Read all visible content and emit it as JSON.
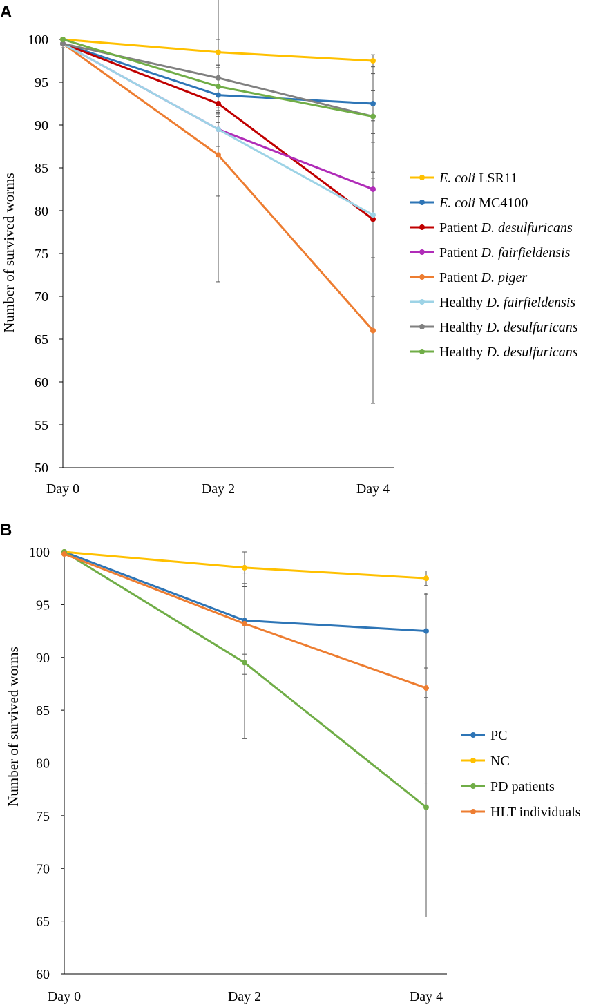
{
  "chart_data": [
    {
      "panel": "A",
      "type": "line",
      "ylabel": "Number of survived worms",
      "xlabel": "",
      "ylim": [
        50,
        100
      ],
      "yticks": [
        50,
        55,
        60,
        65,
        70,
        75,
        80,
        85,
        90,
        95,
        100
      ],
      "categories": [
        "Day 0",
        "Day 2",
        "Day 4"
      ],
      "legend_position": "right",
      "series": [
        {
          "name_plain": "E. coli",
          "name_italic_first": true,
          "name_rest": " LSR11",
          "color": "#FFC000",
          "values": [
            100,
            98.5,
            97.5
          ],
          "errors": [
            0,
            1.5,
            0.7
          ]
        },
        {
          "name_plain": "E. coli",
          "name_italic_first": true,
          "name_rest": " MC4100",
          "color": "#2E75B6",
          "values": [
            99.5,
            93.5,
            92.5
          ],
          "errors": [
            0.5,
            3.2,
            3.5
          ]
        },
        {
          "name_plain": "Patient ",
          "name_italic_first": false,
          "name_rest": "D. desulfuricans",
          "color": "#C00000",
          "values": [
            99.5,
            92.5,
            79
          ],
          "errors": [
            0.5,
            0.8,
            9
          ]
        },
        {
          "name_plain": "Patient ",
          "name_italic_first": false,
          "name_rest": "D. fairfieldensis",
          "color": "#B02CB8",
          "values": [
            99.5,
            89.5,
            82.5
          ],
          "errors": [
            0.5,
            2,
            8
          ]
        },
        {
          "name_plain": "Patient ",
          "name_italic_first": false,
          "name_rest": "D. piger",
          "color": "#ED7D31",
          "values": [
            99.5,
            86.5,
            66
          ],
          "errors": [
            0.5,
            4.8,
            8.5
          ]
        },
        {
          "name_plain": "Healthy ",
          "name_italic_first": false,
          "name_rest": "D. fairfieldensis",
          "color": "#9DD3E6",
          "values": [
            99.5,
            89.5,
            79.5
          ],
          "errors": [
            0.5,
            17.8,
            5
          ]
        },
        {
          "name_plain": "Healthy ",
          "name_italic_first": false,
          "name_rest": "D. desulfuricans",
          "color": "#808080",
          "values": [
            99.5,
            95.5,
            91
          ],
          "errors": [
            0.5,
            4.5,
            7.2
          ]
        },
        {
          "name_plain": "Healthy ",
          "name_italic_first": false,
          "name_rest": "D. desulfuricans",
          "color": "#70AD47",
          "values": [
            100,
            94.5,
            91
          ],
          "errors": [
            0,
            2.5,
            3
          ]
        }
      ]
    },
    {
      "panel": "B",
      "type": "line",
      "ylabel": "Number of survived worms",
      "xlabel": "",
      "ylim": [
        60,
        100
      ],
      "yticks": [
        60,
        65,
        70,
        75,
        80,
        85,
        90,
        95,
        100
      ],
      "categories": [
        "Day 0",
        "Day 2",
        "Day 4"
      ],
      "legend_position": "right",
      "series": [
        {
          "name_plain": "PC",
          "name_italic_first": false,
          "name_rest": "",
          "color": "#2E75B6",
          "values": [
            100,
            93.5,
            92.5
          ],
          "errors": [
            0,
            3.2,
            3.5
          ]
        },
        {
          "name_plain": "NC",
          "name_italic_first": false,
          "name_rest": "",
          "color": "#FFC000",
          "values": [
            100,
            98.5,
            97.5
          ],
          "errors": [
            0,
            1.5,
            0.7
          ]
        },
        {
          "name_plain": "PD patients",
          "name_italic_first": false,
          "name_rest": "",
          "color": "#70AD47",
          "values": [
            100,
            89.5,
            75.8
          ],
          "errors": [
            0,
            7.2,
            10.4
          ]
        },
        {
          "name_plain": "HLT individuals",
          "name_italic_first": false,
          "name_rest": "",
          "color": "#ED7D31",
          "values": [
            99.8,
            93.2,
            87.1
          ],
          "errors": [
            0,
            4.8,
            9
          ]
        }
      ]
    }
  ]
}
